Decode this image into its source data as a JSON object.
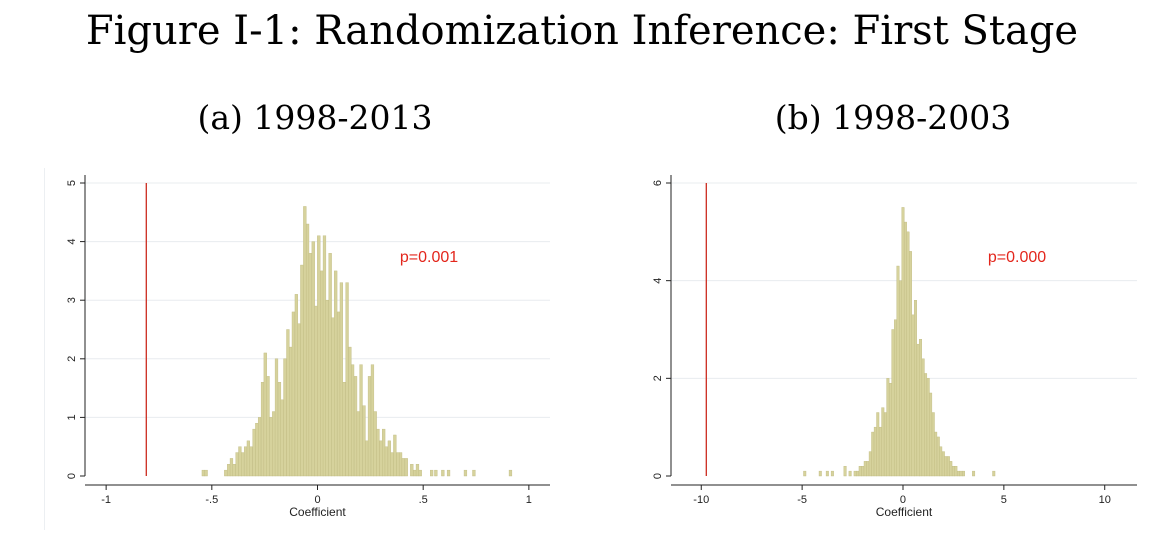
{
  "figure": {
    "title": "Figure I-1: Randomization Inference: First Stage"
  },
  "colors": {
    "bar_fill": "#d6d29c",
    "bar_stroke": "#bfba80",
    "reference_line": "#cc2a1e",
    "annotation": "#e3261c",
    "grid": "#e8ecef",
    "axis": "#222222"
  },
  "chart_data": [
    {
      "type": "bar",
      "subtitle": "(a) 1998-2013",
      "xlabel": "Coefficient",
      "ylabel": "",
      "xlim": [
        -1.1,
        1.1
      ],
      "ylim": [
        0,
        5
      ],
      "xticks": [
        -1,
        -0.5,
        0,
        0.5,
        1
      ],
      "xtick_labels": [
        "-1",
        "-.5",
        "0",
        ".5",
        "1"
      ],
      "yticks": [
        0,
        1,
        2,
        3,
        4,
        5
      ],
      "ytick_labels": [
        "0",
        "1",
        "2",
        "3",
        "4",
        "5"
      ],
      "grid": true,
      "reference_line_x": -0.81,
      "annotation": "p=0.001",
      "bin_width": 0.0133,
      "bars": [
        {
          "x": -0.54,
          "y": 0.1
        },
        {
          "x": -0.527,
          "y": 0.1
        },
        {
          "x": -0.434,
          "y": 0.1
        },
        {
          "x": -0.42,
          "y": 0.2
        },
        {
          "x": -0.407,
          "y": 0.3
        },
        {
          "x": -0.394,
          "y": 0.2
        },
        {
          "x": -0.38,
          "y": 0.4
        },
        {
          "x": -0.367,
          "y": 0.5
        },
        {
          "x": -0.354,
          "y": 0.4
        },
        {
          "x": -0.34,
          "y": 0.5
        },
        {
          "x": -0.327,
          "y": 0.6
        },
        {
          "x": -0.314,
          "y": 0.5
        },
        {
          "x": -0.3,
          "y": 0.8
        },
        {
          "x": -0.287,
          "y": 0.9
        },
        {
          "x": -0.274,
          "y": 1.0
        },
        {
          "x": -0.26,
          "y": 1.6
        },
        {
          "x": -0.247,
          "y": 2.1
        },
        {
          "x": -0.234,
          "y": 1.7
        },
        {
          "x": -0.22,
          "y": 1.0
        },
        {
          "x": -0.207,
          "y": 1.1
        },
        {
          "x": -0.194,
          "y": 2.0
        },
        {
          "x": -0.18,
          "y": 1.6
        },
        {
          "x": -0.167,
          "y": 1.3
        },
        {
          "x": -0.154,
          "y": 2.0
        },
        {
          "x": -0.14,
          "y": 2.5
        },
        {
          "x": -0.127,
          "y": 2.2
        },
        {
          "x": -0.114,
          "y": 2.8
        },
        {
          "x": -0.1,
          "y": 3.1
        },
        {
          "x": -0.087,
          "y": 2.6
        },
        {
          "x": -0.074,
          "y": 3.6
        },
        {
          "x": -0.06,
          "y": 4.6
        },
        {
          "x": -0.047,
          "y": 4.3
        },
        {
          "x": -0.034,
          "y": 3.8
        },
        {
          "x": -0.02,
          "y": 4.0
        },
        {
          "x": -0.007,
          "y": 2.9
        },
        {
          "x": 0.006,
          "y": 4.1
        },
        {
          "x": 0.02,
          "y": 3.5
        },
        {
          "x": 0.033,
          "y": 4.1
        },
        {
          "x": 0.046,
          "y": 3.0
        },
        {
          "x": 0.06,
          "y": 3.8
        },
        {
          "x": 0.073,
          "y": 2.7
        },
        {
          "x": 0.086,
          "y": 3.5
        },
        {
          "x": 0.1,
          "y": 2.8
        },
        {
          "x": 0.113,
          "y": 3.3
        },
        {
          "x": 0.126,
          "y": 1.6
        },
        {
          "x": 0.14,
          "y": 3.3
        },
        {
          "x": 0.153,
          "y": 2.2
        },
        {
          "x": 0.166,
          "y": 1.9
        },
        {
          "x": 0.18,
          "y": 1.7
        },
        {
          "x": 0.193,
          "y": 1.1
        },
        {
          "x": 0.206,
          "y": 1.9
        },
        {
          "x": 0.22,
          "y": 1.2
        },
        {
          "x": 0.233,
          "y": 0.6
        },
        {
          "x": 0.246,
          "y": 1.7
        },
        {
          "x": 0.26,
          "y": 1.9
        },
        {
          "x": 0.273,
          "y": 1.1
        },
        {
          "x": 0.286,
          "y": 0.8
        },
        {
          "x": 0.3,
          "y": 0.6
        },
        {
          "x": 0.313,
          "y": 0.8
        },
        {
          "x": 0.326,
          "y": 0.5
        },
        {
          "x": 0.34,
          "y": 0.6
        },
        {
          "x": 0.353,
          "y": 0.4
        },
        {
          "x": 0.366,
          "y": 0.7
        },
        {
          "x": 0.38,
          "y": 0.4
        },
        {
          "x": 0.393,
          "y": 0.4
        },
        {
          "x": 0.406,
          "y": 0.3
        },
        {
          "x": 0.42,
          "y": 0.3
        },
        {
          "x": 0.446,
          "y": 0.2
        },
        {
          "x": 0.46,
          "y": 0.1
        },
        {
          "x": 0.473,
          "y": 0.2
        },
        {
          "x": 0.486,
          "y": 0.1
        },
        {
          "x": 0.54,
          "y": 0.1
        },
        {
          "x": 0.56,
          "y": 0.1
        },
        {
          "x": 0.593,
          "y": 0.1
        },
        {
          "x": 0.62,
          "y": 0.1
        },
        {
          "x": 0.7,
          "y": 0.1
        },
        {
          "x": 0.74,
          "y": 0.1
        },
        {
          "x": 0.913,
          "y": 0.1
        }
      ]
    },
    {
      "type": "bar",
      "subtitle": "(b) 1998-2003",
      "xlabel": "Coefficient",
      "ylabel": "",
      "xlim": [
        -11.5,
        11.6
      ],
      "ylim": [
        0,
        6
      ],
      "xticks": [
        -10,
        -5,
        0,
        5,
        10
      ],
      "xtick_labels": [
        "-10",
        "-5",
        "0",
        "5",
        "10"
      ],
      "yticks": [
        0,
        2,
        4,
        6
      ],
      "ytick_labels": [
        "0",
        "2",
        "4",
        "6"
      ],
      "grid": true,
      "reference_line_x": -9.75,
      "annotation": "p=0.000",
      "bin_width": 0.125,
      "bars": [
        {
          "x": -4.87,
          "y": 0.1
        },
        {
          "x": -4.1,
          "y": 0.1
        },
        {
          "x": -3.75,
          "y": 0.1
        },
        {
          "x": -3.5,
          "y": 0.1
        },
        {
          "x": -2.87,
          "y": 0.2
        },
        {
          "x": -2.62,
          "y": 0.1
        },
        {
          "x": -2.37,
          "y": 0.1
        },
        {
          "x": -2.25,
          "y": 0.1
        },
        {
          "x": -2.12,
          "y": 0.2
        },
        {
          "x": -2.0,
          "y": 0.2
        },
        {
          "x": -1.87,
          "y": 0.3
        },
        {
          "x": -1.75,
          "y": 0.3
        },
        {
          "x": -1.62,
          "y": 0.5
        },
        {
          "x": -1.5,
          "y": 0.9
        },
        {
          "x": -1.37,
          "y": 1.0
        },
        {
          "x": -1.25,
          "y": 1.3
        },
        {
          "x": -1.12,
          "y": 1.0
        },
        {
          "x": -1.0,
          "y": 1.4
        },
        {
          "x": -0.87,
          "y": 1.3
        },
        {
          "x": -0.75,
          "y": 2.0
        },
        {
          "x": -0.62,
          "y": 1.9
        },
        {
          "x": -0.5,
          "y": 3.0
        },
        {
          "x": -0.37,
          "y": 3.2
        },
        {
          "x": -0.25,
          "y": 4.3
        },
        {
          "x": -0.12,
          "y": 4.0
        },
        {
          "x": 0.0,
          "y": 5.5
        },
        {
          "x": 0.12,
          "y": 5.2
        },
        {
          "x": 0.25,
          "y": 5.0
        },
        {
          "x": 0.37,
          "y": 4.6
        },
        {
          "x": 0.5,
          "y": 3.3
        },
        {
          "x": 0.62,
          "y": 3.6
        },
        {
          "x": 0.75,
          "y": 2.7
        },
        {
          "x": 0.87,
          "y": 2.8
        },
        {
          "x": 1.0,
          "y": 2.4
        },
        {
          "x": 1.12,
          "y": 2.1
        },
        {
          "x": 1.25,
          "y": 2.0
        },
        {
          "x": 1.37,
          "y": 1.7
        },
        {
          "x": 1.5,
          "y": 1.3
        },
        {
          "x": 1.62,
          "y": 0.9
        },
        {
          "x": 1.75,
          "y": 0.8
        },
        {
          "x": 1.87,
          "y": 0.6
        },
        {
          "x": 2.0,
          "y": 0.5
        },
        {
          "x": 2.12,
          "y": 0.4
        },
        {
          "x": 2.25,
          "y": 0.4
        },
        {
          "x": 2.37,
          "y": 0.3
        },
        {
          "x": 2.5,
          "y": 0.2
        },
        {
          "x": 2.62,
          "y": 0.2
        },
        {
          "x": 2.75,
          "y": 0.1
        },
        {
          "x": 2.87,
          "y": 0.1
        },
        {
          "x": 3.0,
          "y": 0.1
        },
        {
          "x": 3.5,
          "y": 0.1
        },
        {
          "x": 4.5,
          "y": 0.1
        }
      ]
    }
  ]
}
